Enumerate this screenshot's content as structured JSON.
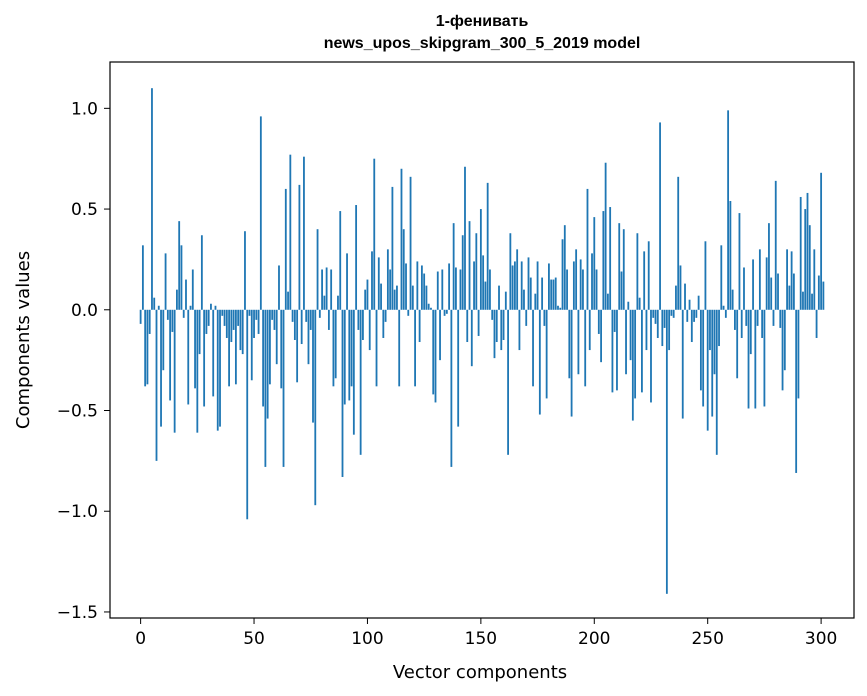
{
  "chart_data": {
    "type": "bar",
    "title_line1": "1-фенивать",
    "title_line2": "news_upos_skipgram_300_5_2019 model",
    "xlabel": "Vector components",
    "ylabel": "Components values",
    "xlim": [
      -13.5,
      314.5
    ],
    "ylim": [
      -1.53,
      1.23
    ],
    "xticks": [
      0,
      50,
      100,
      150,
      200,
      250,
      300
    ],
    "yticks": [
      -1.5,
      -1.0,
      -0.5,
      0.0,
      0.5,
      1.0
    ],
    "ytick_labels": [
      "−1.5",
      "−1.0",
      "−0.5",
      "0.0",
      "0.5",
      "1.0"
    ],
    "bar_color": "#1f77b4",
    "grid": false,
    "legend": "none",
    "values": [
      -0.07,
      0.32,
      -0.38,
      -0.37,
      -0.12,
      1.1,
      0.06,
      -0.75,
      0.02,
      -0.58,
      -0.3,
      0.28,
      -0.05,
      -0.45,
      -0.11,
      -0.61,
      0.1,
      0.44,
      0.32,
      -0.04,
      0.15,
      -0.47,
      0.02,
      0.2,
      -0.39,
      -0.61,
      -0.22,
      0.37,
      -0.48,
      -0.12,
      -0.08,
      0.03,
      -0.43,
      0.02,
      -0.6,
      -0.58,
      -0.03,
      -0.08,
      -0.14,
      -0.38,
      -0.16,
      -0.1,
      -0.37,
      -0.08,
      -0.2,
      -0.22,
      0.39,
      -1.04,
      -0.03,
      -0.35,
      -0.14,
      -0.05,
      -0.12,
      0.96,
      -0.48,
      -0.78,
      -0.54,
      -0.37,
      -0.05,
      -0.1,
      -0.27,
      0.22,
      -0.39,
      -0.78,
      0.6,
      0.09,
      0.77,
      -0.06,
      -0.15,
      -0.36,
      0.62,
      -0.17,
      0.76,
      -0.06,
      -0.27,
      -0.1,
      -0.56,
      -0.97,
      0.4,
      -0.04,
      0.2,
      0.07,
      0.21,
      -0.1,
      0.2,
      -0.38,
      -0.34,
      0.07,
      0.49,
      -0.83,
      -0.47,
      0.28,
      -0.45,
      -0.38,
      -0.62,
      0.52,
      -0.1,
      -0.72,
      -0.15,
      0.1,
      0.15,
      -0.2,
      0.29,
      0.75,
      -0.38,
      0.26,
      0.13,
      -0.14,
      -0.06,
      0.3,
      0.2,
      0.61,
      0.1,
      0.12,
      -0.38,
      0.7,
      0.4,
      0.23,
      -0.03,
      0.66,
      0.12,
      -0.38,
      0.24,
      -0.16,
      0.22,
      0.18,
      0.12,
      0.03,
      0.01,
      -0.42,
      -0.46,
      0.19,
      -0.25,
      0.2,
      -0.03,
      -0.02,
      0.23,
      -0.78,
      0.43,
      0.21,
      -0.58,
      0.2,
      0.37,
      0.71,
      -0.16,
      0.44,
      -0.28,
      0.24,
      0.38,
      -0.13,
      0.5,
      0.27,
      0.14,
      0.63,
      0.2,
      -0.05,
      -0.24,
      -0.16,
      0.12,
      -0.2,
      -0.15,
      0.09,
      -0.72,
      0.38,
      0.22,
      0.24,
      0.3,
      -0.2,
      0.24,
      0.1,
      -0.08,
      0.26,
      0.16,
      -0.38,
      0.08,
      0.24,
      -0.52,
      0.16,
      -0.08,
      -0.44,
      0.23,
      0.15,
      0.15,
      0.16,
      0.02,
      0.01,
      0.35,
      0.42,
      0.2,
      -0.34,
      -0.53,
      0.24,
      0.3,
      -0.32,
      0.25,
      0.2,
      -0.38,
      0.6,
      -0.2,
      0.28,
      0.46,
      0.2,
      -0.12,
      -0.26,
      0.49,
      0.73,
      0.08,
      0.51,
      -0.41,
      -0.11,
      -0.4,
      0.43,
      0.19,
      0.4,
      -0.32,
      0.04,
      -0.25,
      -0.55,
      -0.44,
      0.38,
      0.06,
      -0.41,
      0.29,
      -0.2,
      0.34,
      -0.46,
      -0.04,
      -0.07,
      -0.14,
      0.93,
      -0.18,
      -0.09,
      -1.41,
      -0.2,
      -0.03,
      -0.04,
      0.12,
      0.66,
      0.22,
      -0.54,
      0.13,
      -0.06,
      0.05,
      -0.16,
      -0.06,
      -0.04,
      0.07,
      -0.4,
      -0.48,
      0.34,
      -0.6,
      -0.2,
      -0.53,
      -0.32,
      -0.72,
      -0.18,
      0.32,
      0.02,
      -0.04,
      0.99,
      0.54,
      0.1,
      -0.1,
      -0.34,
      0.48,
      -0.14,
      0.21,
      -0.08,
      -0.49,
      -0.22,
      0.25,
      -0.49,
      -0.08,
      0.3,
      -0.14,
      -0.48,
      0.26,
      0.43,
      0.16,
      -0.08,
      0.64,
      0.18,
      -0.09,
      -0.4,
      -0.3,
      0.3,
      0.12,
      0.29,
      0.18,
      -0.81,
      -0.44,
      0.56,
      0.09,
      0.5,
      0.58,
      0.42,
      0.08,
      0.3,
      -0.14,
      0.17,
      0.68,
      0.14
    ]
  }
}
